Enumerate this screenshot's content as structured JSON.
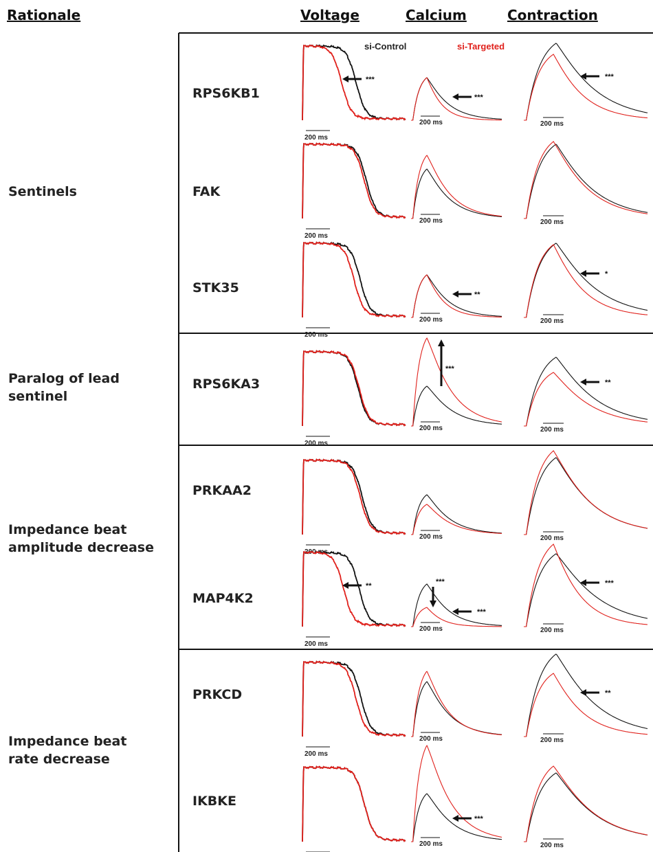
{
  "headers": {
    "rationale": "Rationale",
    "voltage": "Voltage",
    "calcium": "Calcium",
    "contraction": "Contraction"
  },
  "legend": {
    "control": "si-Control",
    "targeted": "si-Targeted",
    "control_color": "#111111",
    "targeted_color": "#e0201b"
  },
  "categories": [
    {
      "id": "sentinels",
      "label": "Sentinels"
    },
    {
      "id": "paralog",
      "label": "Paralog of lead sentinel"
    },
    {
      "id": "amplitude",
      "label": "Impedance beat amplitude decrease"
    },
    {
      "id": "rate",
      "label": "Impedance beat rate decrease"
    }
  ],
  "scale_bar": "200 ms",
  "rows": [
    {
      "gene": "RPS6KB1",
      "group": "sentinels",
      "voltage": {
        "change": "faster-repolarization",
        "significance": "***"
      },
      "calcium": {
        "change": "faster-decay",
        "significance": "***"
      },
      "contraction": {
        "change": "faster-relaxation",
        "significance": "***"
      }
    },
    {
      "gene": "FAK",
      "group": "sentinels",
      "voltage": {
        "change": "none",
        "significance": ""
      },
      "calcium": {
        "change": "higher-amplitude",
        "significance": ""
      },
      "contraction": {
        "change": "none",
        "significance": ""
      }
    },
    {
      "gene": "STK35",
      "group": "sentinels",
      "voltage": {
        "change": "slightly-faster",
        "significance": ""
      },
      "calcium": {
        "change": "faster-decay",
        "significance": "**"
      },
      "contraction": {
        "change": "faster-relaxation",
        "significance": "*"
      }
    },
    {
      "gene": "RPS6KA3",
      "group": "paralog",
      "voltage": {
        "change": "none",
        "significance": ""
      },
      "calcium": {
        "change": "increased-amplitude",
        "significance": "***"
      },
      "contraction": {
        "change": "decreased-amplitude",
        "significance": "**"
      }
    },
    {
      "gene": "PRKAA2",
      "group": "amplitude",
      "voltage": {
        "change": "none",
        "significance": ""
      },
      "calcium": {
        "change": "decreased-amplitude",
        "significance": ""
      },
      "contraction": {
        "change": "increased-amplitude",
        "significance": ""
      }
    },
    {
      "gene": "MAP4K2",
      "group": "amplitude",
      "voltage": {
        "change": "faster-repolarization",
        "significance": "**"
      },
      "calcium": {
        "change": "decreased-amplitude-faster-decay",
        "significance": "***",
        "significance_2": "***"
      },
      "contraction": {
        "change": "faster-relaxation",
        "significance": "***"
      }
    },
    {
      "gene": "PRKCD",
      "group": "rate",
      "voltage": {
        "change": "faster-repolarization",
        "significance": ""
      },
      "calcium": {
        "change": "increased-amplitude",
        "significance": ""
      },
      "contraction": {
        "change": "decreased-amplitude",
        "significance": "**"
      }
    },
    {
      "gene": "IKBKE",
      "group": "rate",
      "voltage": {
        "change": "none",
        "significance": ""
      },
      "calcium": {
        "change": "increased-amplitude-delayed",
        "significance": "***",
        "significance_2": "**"
      },
      "contraction": {
        "change": "increased-amplitude",
        "significance": ""
      }
    }
  ]
}
